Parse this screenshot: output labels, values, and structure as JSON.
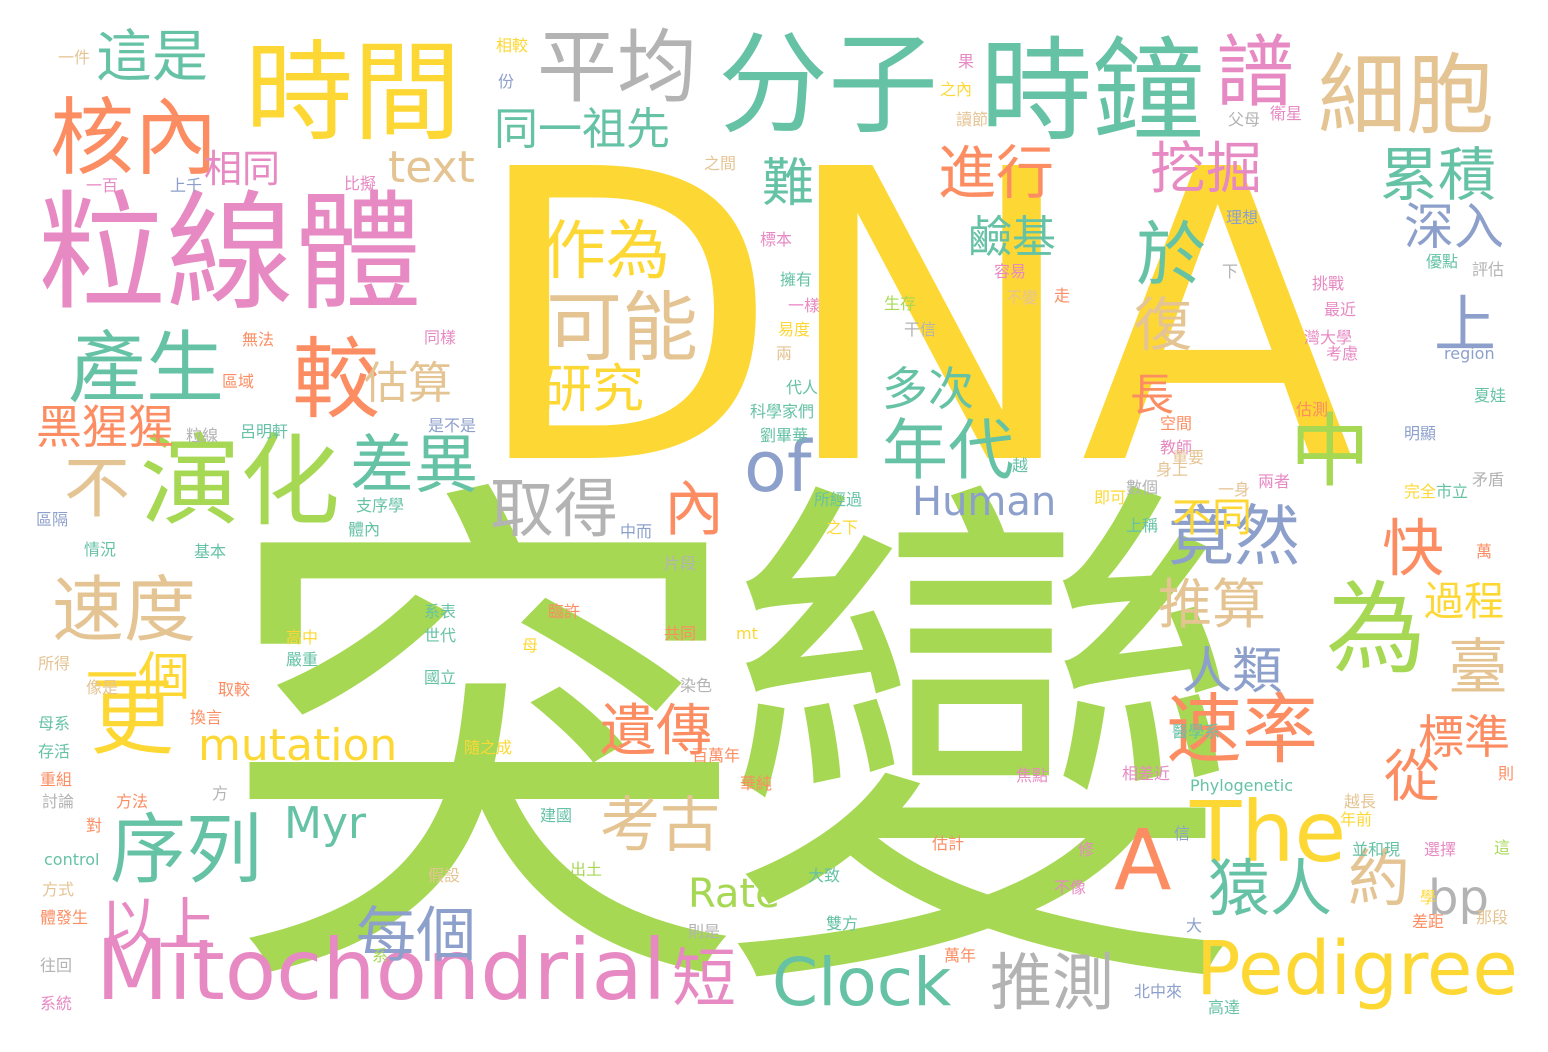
{
  "palette": {
    "yellow": "#fdd835",
    "green": "#a6d854",
    "teal": "#66c2a5",
    "pink": "#e78ac3",
    "orange": "#fc8d62",
    "tan": "#e5c494",
    "gray": "#b3b3b3",
    "blue": "#8da0cb"
  },
  "words": [
    {
      "text": "DNA",
      "color": "yellow"
    },
    {
      "text": "突變",
      "color": "green"
    },
    {
      "text": "粒線體",
      "color": "pink"
    },
    {
      "text": "時間",
      "color": "yellow"
    },
    {
      "text": "分子",
      "color": "teal"
    },
    {
      "text": "時鐘",
      "color": "teal"
    },
    {
      "text": "核內",
      "color": "orange"
    },
    {
      "text": "平均",
      "color": "gray"
    },
    {
      "text": "細胞",
      "color": "tan"
    },
    {
      "text": "譜",
      "color": "pink"
    },
    {
      "text": "這是",
      "color": "teal"
    },
    {
      "text": "Mitochondrial",
      "color": "pink"
    },
    {
      "text": "Pedigree",
      "color": "yellow"
    },
    {
      "text": "The",
      "color": "yellow"
    },
    {
      "text": "Clock",
      "color": "teal"
    },
    {
      "text": "演化",
      "color": "green"
    },
    {
      "text": "產生",
      "color": "teal"
    },
    {
      "text": "較",
      "color": "orange"
    },
    {
      "text": "可能",
      "color": "tan"
    },
    {
      "text": "作為",
      "color": "yellow"
    },
    {
      "text": "研究",
      "color": "yellow"
    },
    {
      "text": "更",
      "color": "yellow"
    },
    {
      "text": "速度",
      "color": "tan"
    },
    {
      "text": "不",
      "color": "tan"
    },
    {
      "text": "序列",
      "color": "teal"
    },
    {
      "text": "以上",
      "color": "pink"
    },
    {
      "text": "每個",
      "color": "blue"
    },
    {
      "text": "推測",
      "color": "gray"
    },
    {
      "text": "速率",
      "color": "orange"
    },
    {
      "text": "竟然",
      "color": "blue"
    },
    {
      "text": "為",
      "color": "green"
    },
    {
      "text": "中",
      "color": "green"
    },
    {
      "text": "年代",
      "color": "teal"
    },
    {
      "text": "差異",
      "color": "teal"
    },
    {
      "text": "取得",
      "color": "gray"
    },
    {
      "text": "內",
      "color": "orange"
    },
    {
      "text": "考古",
      "color": "tan"
    },
    {
      "text": "遺傳",
      "color": "orange"
    },
    {
      "text": "進行",
      "color": "orange"
    },
    {
      "text": "於",
      "color": "teal"
    },
    {
      "text": "挖掘",
      "color": "pink"
    },
    {
      "text": "累積",
      "color": "teal"
    },
    {
      "text": "深入",
      "color": "blue"
    },
    {
      "text": "難",
      "color": "teal"
    },
    {
      "text": "上",
      "color": "blue"
    },
    {
      "text": "快",
      "color": "orange"
    },
    {
      "text": "推算",
      "color": "tan"
    },
    {
      "text": "人類",
      "color": "blue"
    },
    {
      "text": "猿人",
      "color": "teal"
    },
    {
      "text": "約",
      "color": "tan"
    },
    {
      "text": "從",
      "color": "orange"
    },
    {
      "text": "A",
      "color": "orange"
    },
    {
      "text": "of",
      "color": "blue"
    },
    {
      "text": "mutation",
      "color": "yellow"
    },
    {
      "text": "Myr",
      "color": "teal"
    },
    {
      "text": "Rate",
      "color": "green"
    },
    {
      "text": "Human",
      "color": "blue"
    },
    {
      "text": "text",
      "color": "tan"
    },
    {
      "text": "bp",
      "color": "gray"
    },
    {
      "text": "短",
      "color": "pink"
    },
    {
      "text": "一個",
      "color": "yellow"
    },
    {
      "text": "黑猩猩",
      "color": "orange"
    },
    {
      "text": "估算",
      "color": "tan"
    },
    {
      "text": "同一祖先",
      "color": "teal"
    },
    {
      "text": "相同",
      "color": "pink"
    },
    {
      "text": "鹼基",
      "color": "teal"
    },
    {
      "text": "復",
      "color": "tan"
    },
    {
      "text": "長",
      "color": "orange"
    },
    {
      "text": "多次",
      "color": "teal"
    },
    {
      "text": "不同",
      "color": "yellow"
    },
    {
      "text": "過程",
      "color": "yellow"
    },
    {
      "text": "臺",
      "color": "tan"
    },
    {
      "text": "標準",
      "color": "orange"
    },
    {
      "text": "一件",
      "color": "tan"
    },
    {
      "text": "相較",
      "color": "yellow"
    },
    {
      "text": "份",
      "color": "blue"
    },
    {
      "text": "果",
      "color": "pink"
    },
    {
      "text": "之內",
      "color": "yellow"
    },
    {
      "text": "讀節",
      "color": "tan"
    },
    {
      "text": "父母",
      "color": "gray"
    },
    {
      "text": "衛星",
      "color": "pink"
    },
    {
      "text": "理想",
      "color": "blue"
    },
    {
      "text": "優點",
      "color": "teal"
    },
    {
      "text": "評估",
      "color": "gray"
    },
    {
      "text": "一百",
      "color": "pink"
    },
    {
      "text": "上千",
      "color": "blue"
    },
    {
      "text": "比擬",
      "color": "pink"
    },
    {
      "text": "之間",
      "color": "tan"
    },
    {
      "text": "標本",
      "color": "pink"
    },
    {
      "text": "擁有",
      "color": "teal"
    },
    {
      "text": "容易",
      "color": "pink"
    },
    {
      "text": "下",
      "color": "gray"
    },
    {
      "text": "挑戰",
      "color": "pink"
    },
    {
      "text": "最近",
      "color": "pink"
    },
    {
      "text": "一樣",
      "color": "pink"
    },
    {
      "text": "生存",
      "color": "green"
    },
    {
      "text": "不變",
      "color": "tan"
    },
    {
      "text": "走",
      "color": "orange"
    },
    {
      "text": "灣大學",
      "color": "pink"
    },
    {
      "text": "易度",
      "color": "yellow"
    },
    {
      "text": "兩",
      "color": "tan"
    },
    {
      "text": "干信",
      "color": "gray"
    },
    {
      "text": "考慮",
      "color": "pink"
    },
    {
      "text": "region",
      "color": "blue"
    },
    {
      "text": "無法",
      "color": "orange"
    },
    {
      "text": "同樣",
      "color": "pink"
    },
    {
      "text": "區域",
      "color": "orange"
    },
    {
      "text": "代人",
      "color": "teal"
    },
    {
      "text": "科學家們",
      "color": "teal"
    },
    {
      "text": "夏娃",
      "color": "teal"
    },
    {
      "text": "是不是",
      "color": "blue"
    },
    {
      "text": "粒線",
      "color": "gray"
    },
    {
      "text": "呂明軒",
      "color": "teal"
    },
    {
      "text": "劉畢華",
      "color": "teal"
    },
    {
      "text": "估測",
      "color": "orange"
    },
    {
      "text": "明顯",
      "color": "blue"
    },
    {
      "text": "空間",
      "color": "orange"
    },
    {
      "text": "教師",
      "color": "pink"
    },
    {
      "text": "身上",
      "color": "tan"
    },
    {
      "text": "重要",
      "color": "tan"
    },
    {
      "text": "越",
      "color": "teal"
    },
    {
      "text": "數個",
      "color": "gray"
    },
    {
      "text": "一身",
      "color": "tan"
    },
    {
      "text": "兩者",
      "color": "pink"
    },
    {
      "text": "完全",
      "color": "yellow"
    },
    {
      "text": "市立",
      "color": "teal"
    },
    {
      "text": "矛盾",
      "color": "gray"
    },
    {
      "text": "所經過",
      "color": "teal"
    },
    {
      "text": "即可",
      "color": "yellow"
    },
    {
      "text": "區隔",
      "color": "blue"
    },
    {
      "text": "支序學",
      "color": "teal"
    },
    {
      "text": "體內",
      "color": "teal"
    },
    {
      "text": "之下",
      "color": "yellow"
    },
    {
      "text": "上稱",
      "color": "teal"
    },
    {
      "text": "情況",
      "color": "teal"
    },
    {
      "text": "基本",
      "color": "teal"
    },
    {
      "text": "中而",
      "color": "blue"
    },
    {
      "text": "片段",
      "color": "gray"
    },
    {
      "text": "系表",
      "color": "teal"
    },
    {
      "text": "世代",
      "color": "teal"
    },
    {
      "text": "臨許",
      "color": "orange"
    },
    {
      "text": "母",
      "color": "yellow"
    },
    {
      "text": "共同",
      "color": "orange"
    },
    {
      "text": "mt",
      "color": "yellow"
    },
    {
      "text": "高中",
      "color": "yellow"
    },
    {
      "text": "嚴重",
      "color": "teal"
    },
    {
      "text": "所得",
      "color": "tan"
    },
    {
      "text": "像是",
      "color": "tan"
    },
    {
      "text": "取較",
      "color": "orange"
    },
    {
      "text": "國立",
      "color": "teal"
    },
    {
      "text": "染色",
      "color": "gray"
    },
    {
      "text": "母系",
      "color": "teal"
    },
    {
      "text": "換言",
      "color": "orange"
    },
    {
      "text": "存活",
      "color": "teal"
    },
    {
      "text": "醫學系",
      "color": "teal"
    },
    {
      "text": "隨之成",
      "color": "yellow"
    },
    {
      "text": "百萬年",
      "color": "orange"
    },
    {
      "text": "重組",
      "color": "orange"
    },
    {
      "text": "討論",
      "color": "gray"
    },
    {
      "text": "方法",
      "color": "orange"
    },
    {
      "text": "方",
      "color": "gray"
    },
    {
      "text": "華純",
      "color": "orange"
    },
    {
      "text": "焦點",
      "color": "pink"
    },
    {
      "text": "相差近",
      "color": "pink"
    },
    {
      "text": "Phylogenetic",
      "color": "teal"
    },
    {
      "text": "越長",
      "color": "tan"
    },
    {
      "text": "年前",
      "color": "yellow"
    },
    {
      "text": "建國",
      "color": "teal"
    },
    {
      "text": "信",
      "color": "blue"
    },
    {
      "text": "選擇",
      "color": "pink"
    },
    {
      "text": "並和現",
      "color": "teal"
    },
    {
      "text": "這",
      "color": "green"
    },
    {
      "text": "對",
      "color": "orange"
    },
    {
      "text": "control",
      "color": "teal"
    },
    {
      "text": "出土",
      "color": "green"
    },
    {
      "text": "假設",
      "color": "tan"
    },
    {
      "text": "估計",
      "color": "orange"
    },
    {
      "text": "修",
      "color": "pink"
    },
    {
      "text": "大致",
      "color": "teal"
    },
    {
      "text": "不像",
      "color": "pink"
    },
    {
      "text": "方式",
      "color": "tan"
    },
    {
      "text": "體發生",
      "color": "orange"
    },
    {
      "text": "則是",
      "color": "gray"
    },
    {
      "text": "雙方",
      "color": "teal"
    },
    {
      "text": "萬年",
      "color": "orange"
    },
    {
      "text": "差距",
      "color": "orange"
    },
    {
      "text": "那段",
      "color": "tan"
    },
    {
      "text": "大",
      "color": "blue"
    },
    {
      "text": "往回",
      "color": "gray"
    },
    {
      "text": "系",
      "color": "green"
    },
    {
      "text": "北中來",
      "color": "blue"
    },
    {
      "text": "高達",
      "color": "teal"
    },
    {
      "text": "系統",
      "color": "pink"
    },
    {
      "text": "萬",
      "color": "orange"
    },
    {
      "text": "則",
      "color": "orange"
    },
    {
      "text": "學",
      "color": "yellow"
    }
  ]
}
